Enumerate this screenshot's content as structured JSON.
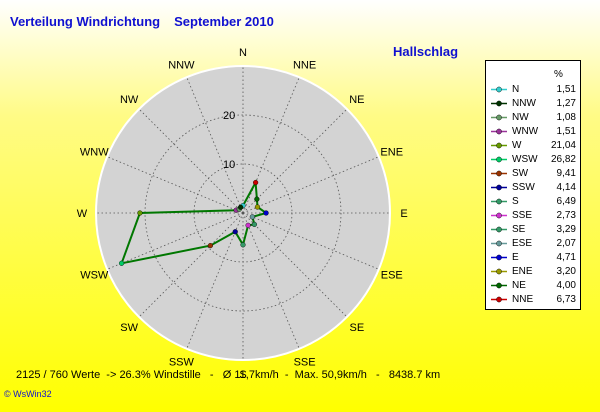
{
  "title": "Verteilung Windrichtung",
  "period": "September 2010",
  "station": "Hallschlag",
  "legend_unit": "%",
  "footer": "2125 / 760 Werte  -> 26.3% Windstille   -   Ø 11,7km/h  -  Max. 50,9km/h   -   8438.7 km",
  "brand": "© WsWin32",
  "chart_data": {
    "type": "radar",
    "direction_labels": [
      "N",
      "NNE",
      "NE",
      "ENE",
      "E",
      "ESE",
      "SE",
      "SSE",
      "S",
      "SSW",
      "SW",
      "WSW",
      "W",
      "WNW",
      "NW",
      "NNW"
    ],
    "radial_ticks": [
      "10",
      "20"
    ],
    "rmax": 30,
    "series_line_color": "#007700",
    "legend": [
      {
        "label": "N",
        "value": "1,51",
        "color": "#33cccc"
      },
      {
        "label": "NNW",
        "value": "1,27",
        "color": "#003300"
      },
      {
        "label": "NW",
        "value": "1,08",
        "color": "#669966"
      },
      {
        "label": "WNW",
        "value": "1,51",
        "color": "#993399"
      },
      {
        "label": "W",
        "value": "21,04",
        "color": "#669900"
      },
      {
        "label": "WSW",
        "value": "26,82",
        "color": "#00cc66"
      },
      {
        "label": "SW",
        "value": "9,41",
        "color": "#993300"
      },
      {
        "label": "SSW",
        "value": "4,14",
        "color": "#000099"
      },
      {
        "label": "S",
        "value": "6,49",
        "color": "#339966"
      },
      {
        "label": "SSE",
        "value": "2,73",
        "color": "#cc33cc"
      },
      {
        "label": "SE",
        "value": "3,29",
        "color": "#339966"
      },
      {
        "label": "ESE",
        "value": "2,07",
        "color": "#669999"
      },
      {
        "label": "E",
        "value": "4,71",
        "color": "#0000cc"
      },
      {
        "label": "ENE",
        "value": "3,20",
        "color": "#999900"
      },
      {
        "label": "NE",
        "value": "4,00",
        "color": "#006600"
      },
      {
        "label": "NNE",
        "value": "6,73",
        "color": "#cc0000"
      }
    ]
  }
}
